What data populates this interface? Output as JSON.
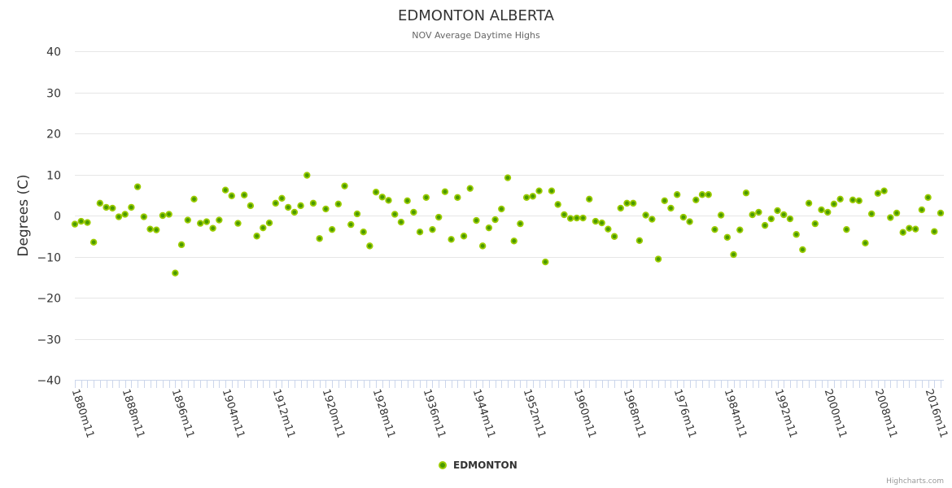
{
  "chart_data": {
    "type": "scatter",
    "title": "EDMONTON ALBERTA",
    "subtitle": "NOV Average Daytime Highs",
    "xlabel": "",
    "ylabel": "Degrees (C)",
    "ylim": [
      -40,
      40
    ],
    "yticks": [
      40,
      30,
      20,
      10,
      0,
      -10,
      -20,
      -30,
      -40
    ],
    "yticks_labels": [
      "40",
      "30",
      "20",
      "10",
      "0",
      "−10",
      "−20",
      "−30",
      "−40"
    ],
    "grid": true,
    "legend_position": "bottom-center",
    "x_start_year": 1880,
    "x_suffix": "m11",
    "x_label_every": 8,
    "series": [
      {
        "name": "EDMONTON",
        "color": "#7cb500",
        "values": [
          -2.1,
          -1.4,
          -1.7,
          -6.5,
          3.0,
          2.0,
          1.8,
          -0.3,
          0.3,
          2.0,
          7.0,
          -0.3,
          -3.3,
          -3.5,
          0.0,
          0.3,
          -14.0,
          -7.1,
          -1.1,
          4.0,
          -1.9,
          -1.5,
          -3.1,
          -1.1,
          6.2,
          4.8,
          -1.9,
          5.0,
          2.4,
          -5.0,
          -3.0,
          -1.8,
          3.0,
          4.2,
          2.0,
          0.8,
          2.4,
          9.8,
          3.0,
          -5.6,
          1.6,
          -3.4,
          2.8,
          7.2,
          -2.2,
          0.4,
          -4.0,
          -7.4,
          5.7,
          4.5,
          3.7,
          0.3,
          -1.6,
          3.6,
          0.8,
          -4.0,
          4.4,
          -3.4,
          -0.4,
          5.8,
          -5.8,
          4.4,
          -5.0,
          6.6,
          -1.2,
          -7.4,
          -3.0,
          -1.0,
          1.6,
          9.2,
          -6.2,
          -2.0,
          4.4,
          4.7,
          6.0,
          -11.3,
          6.0,
          2.7,
          0.2,
          -0.7,
          -0.6,
          -0.6,
          4.0,
          -1.4,
          -1.8,
          -3.3,
          -5.1,
          1.8,
          3.0,
          3.0,
          -6.1,
          0.1,
          -0.9,
          -10.6,
          3.6,
          1.8,
          5.1,
          -0.4,
          -1.5,
          3.8,
          5.1,
          5.1,
          -3.4,
          0.1,
          -5.3,
          -9.5,
          -3.5,
          5.5,
          0.2,
          0.8,
          -2.4,
          -0.8,
          1.2,
          0.2,
          -0.8,
          -4.6,
          -8.3,
          3.0,
          -2.0,
          1.4,
          0.8,
          2.8,
          4.0,
          -3.4,
          3.8,
          3.6,
          -6.7,
          0.4,
          5.4,
          6.0,
          -0.5,
          0.6,
          -4.1,
          -3.1,
          -3.3,
          1.4,
          4.4,
          -3.9,
          0.6
        ]
      }
    ]
  },
  "credits": "Highcharts.com"
}
